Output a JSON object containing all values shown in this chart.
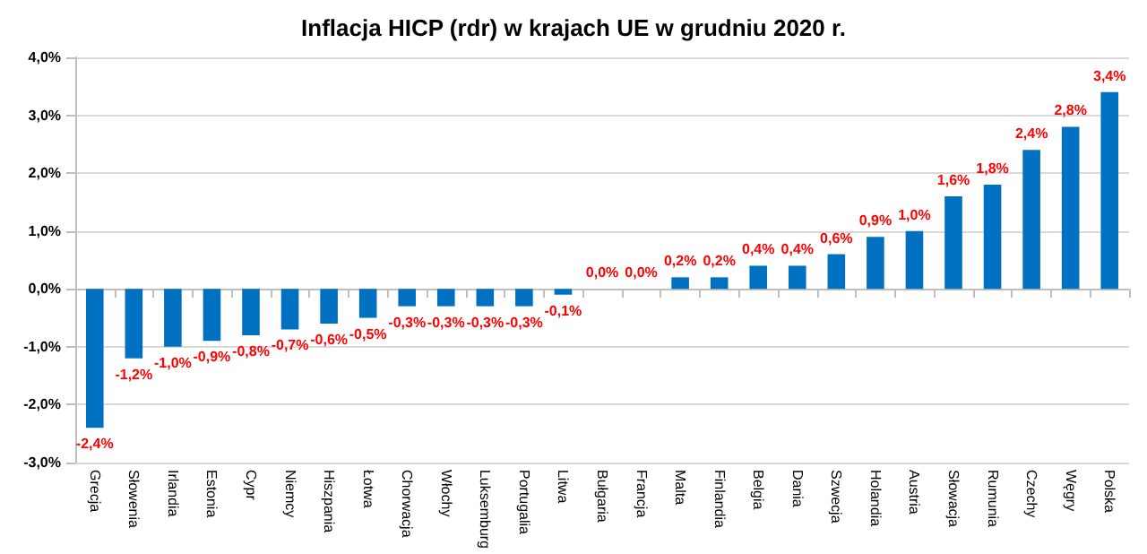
{
  "chart_data": {
    "type": "bar",
    "title": "Inflacja HICP (rdr) w krajach UE w grudniu 2020 r.",
    "categories": [
      "Grecja",
      "Słowenia",
      "Irlandia",
      "Estonia",
      "Cypr",
      "Niemcy",
      "Hiszpania",
      "Łotwa",
      "Chorwacja",
      "Włochy",
      "Luksemburg",
      "Portugalia",
      "Litwa",
      "Bułgaria",
      "Francja",
      "Malta",
      "Finlandia",
      "Belgia",
      "Dania",
      "Szwecja",
      "Holandia",
      "Austria",
      "Słowacja",
      "Rumunia",
      "Czechy",
      "Węgry",
      "Polska"
    ],
    "values": [
      -2.4,
      -1.2,
      -1.0,
      -0.9,
      -0.8,
      -0.7,
      -0.6,
      -0.5,
      -0.3,
      -0.3,
      -0.3,
      -0.3,
      -0.1,
      0.0,
      0.0,
      0.2,
      0.2,
      0.4,
      0.4,
      0.6,
      0.9,
      1.0,
      1.6,
      1.8,
      2.4,
      2.8,
      3.4
    ],
    "value_labels": [
      "-2,4%",
      "-1,2%",
      "-1,0%",
      "-0,9%",
      "-0,8%",
      "-0,7%",
      "-0,6%",
      "-0,5%",
      "-0,3%",
      "-0,3%",
      "-0,3%",
      "-0,3%",
      "-0,1%",
      "0,0%",
      "0,0%",
      "0,2%",
      "0,2%",
      "0,4%",
      "0,4%",
      "0,6%",
      "0,9%",
      "1,0%",
      "1,6%",
      "1,8%",
      "2,4%",
      "2,8%",
      "3,4%"
    ],
    "color": "#0070c0",
    "ylim": [
      -3,
      4
    ],
    "yticks": [
      {
        "value": -3,
        "label": "-3,0%"
      },
      {
        "value": -2,
        "label": "-2,0%"
      },
      {
        "value": -1,
        "label": "-1,0%"
      },
      {
        "value": 0,
        "label": "0,0%"
      },
      {
        "value": 1,
        "label": "1,0%"
      },
      {
        "value": 2,
        "label": "2,0%"
      },
      {
        "value": 3,
        "label": "3,0%"
      },
      {
        "value": 4,
        "label": "4,0%"
      }
    ],
    "grid": true
  }
}
